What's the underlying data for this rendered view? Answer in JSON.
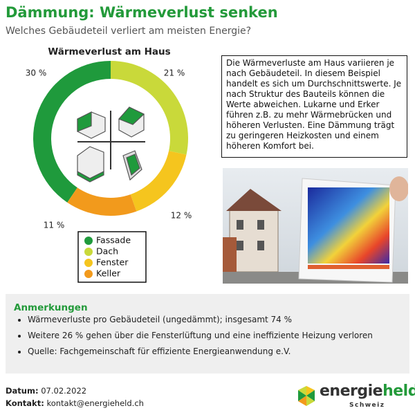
{
  "header": {
    "title": "Dämmung: Wärmeverlust senken",
    "subtitle": "Welches Gebäudeteil verliert am meisten Energie?"
  },
  "chart_data": {
    "type": "donut",
    "title": "Wärmeverlust am Haus",
    "categories": [
      "Fassade",
      "Dach",
      "Fenster",
      "Keller"
    ],
    "values": [
      30,
      21,
      12,
      11
    ],
    "value_labels": [
      "30 %",
      "21 %",
      "12 %",
      "11 %"
    ],
    "colors": [
      "#1f9a3c",
      "#c9d93a",
      "#f5c51e",
      "#f29a1c"
    ]
  },
  "info_text": "Die Wärmeverluste am Haus variieren je nach Gebäudeteil. In diesem Beispiel handelt es sich um Durchschnittswerte. Je nach Struktur des Bauteils können die Werte abweichen. Lukarne und Erker führen z.B. zu mehr Wärmebrücken und höheren Verlusten. Eine Dämmung trägt zu geringeren Heizkosten und einem höheren Komfort bei.",
  "notes": {
    "title": "Anmerkungen",
    "items": [
      "Wärmeverluste pro Gebäudeteil (ungedämmt); insgesamt 74 %",
      "Weitere 26 % gehen über die Fensterlüftung und eine ineffiziente Heizung verloren",
      "Quelle: Fachgemeinschaft für effiziente Energieanwendung e.V."
    ]
  },
  "footer": {
    "date_label": "Datum:",
    "date": "07.02.2022",
    "contact_label": "Kontakt:",
    "contact": "kontakt@energieheld.ch"
  },
  "logo": {
    "name_1": "energie",
    "name_2": "held",
    "region": "Schweiz"
  }
}
